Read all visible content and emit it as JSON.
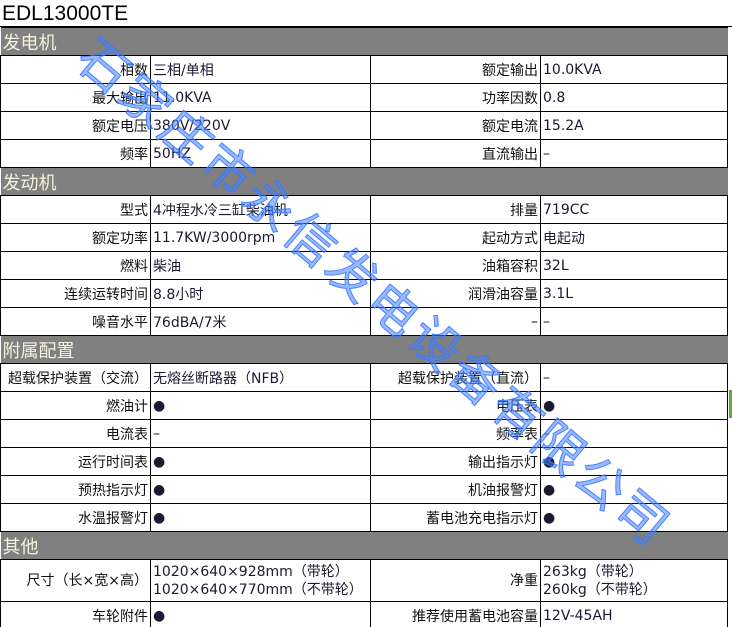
{
  "title": "EDL13000TE",
  "watermark": "石家庄市永信发电设备有限公司",
  "sections": [
    {
      "name": "发电机",
      "rows": [
        [
          "相数",
          "三相/单相",
          "额定输出",
          "10.0KVA"
        ],
        [
          "最大输出",
          "11.0KVA",
          "功率因数",
          "0.8"
        ],
        [
          "额定电压",
          "380V/220V",
          "额定电流",
          "15.2A"
        ],
        [
          "频率",
          "50HZ",
          "直流输出",
          "–"
        ]
      ]
    },
    {
      "name": "发动机",
      "rows": [
        [
          "型式",
          "4冲程水冷三缸柴油机",
          "排量",
          "719CC"
        ],
        [
          "额定功率",
          "11.7KW/3000rpm",
          "起动方式",
          "电起动"
        ],
        [
          "燃料",
          "柴油",
          "油箱容积",
          "32L"
        ],
        [
          "连续运转时间",
          "8.8小时",
          "润滑油容量",
          "3.1L"
        ],
        [
          "噪音水平",
          "76dBA/7米",
          "–",
          "–"
        ]
      ]
    },
    {
      "name": "附属配置",
      "rows": [
        [
          "超载保护装置（交流）",
          "无熔丝断路器（NFB）",
          "超载保护装置（直流）",
          "–"
        ],
        [
          "燃油计",
          "●",
          "电压表",
          "●"
        ],
        [
          "电流表",
          "–",
          "频率表",
          "–"
        ],
        [
          "运行时间表",
          "●",
          "输出指示灯",
          "●"
        ],
        [
          "预热指示灯",
          "●",
          "机油报警灯",
          "●"
        ],
        [
          "水温报警灯",
          "●",
          "蓄电池充电指示灯",
          "●"
        ]
      ]
    },
    {
      "name": "其他",
      "rows": [
        [
          "尺寸（长×宽×高）",
          "1020×640×928mm（带轮）\n1020×640×770mm（不带轮）",
          "净重",
          "263kg（带轮）\n260kg（不带轮）"
        ],
        [
          "车轮附件",
          "●",
          "推荐使用蓄电池容量",
          "12V-45AH"
        ]
      ]
    }
  ]
}
